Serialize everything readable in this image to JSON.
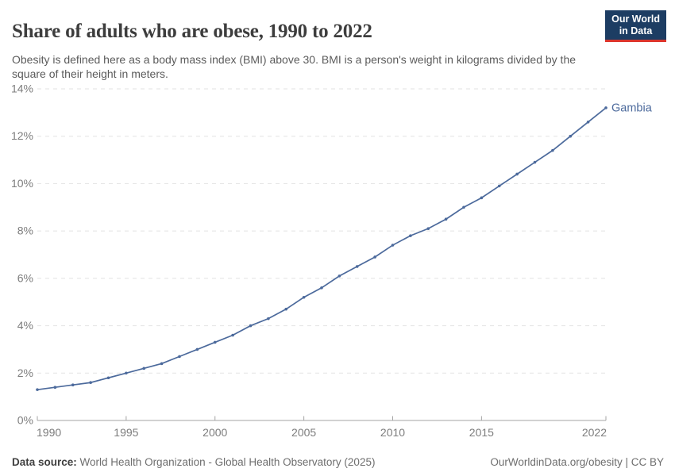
{
  "header": {
    "title": "Share of adults who are obese, 1990 to 2022",
    "subtitle": "Obesity is defined here as a body mass index (BMI) above 30. BMI is a person's weight in kilograms divided by the square of their height in meters.",
    "logo": {
      "line1": "Our World",
      "line2": "in Data"
    }
  },
  "footer": {
    "source_label": "Data source:",
    "source_value": " World Health Organization - Global Health Observatory (2025)",
    "credit": "OurWorldinData.org/obesity | CC BY"
  },
  "colors": {
    "title_color": "#3d3d3d",
    "subtitle_color": "#5b5b5b",
    "logo_bg": "#1d3d63",
    "logo_bar": "#dc352c",
    "gridline_color": "#e2e2e2",
    "axis_color": "#a5a5a5",
    "tick_label_color": "#7d7d7d",
    "footer_color": "#6e6e6e",
    "footer_label_color": "#3f3f3f",
    "line_color": "#4C6A9C"
  },
  "chart_data": {
    "type": "line",
    "title": "Share of adults who are obese, 1990 to 2022",
    "xlabel": "",
    "ylabel": "",
    "xlim": [
      1990,
      2022
    ],
    "ylim": [
      0,
      14
    ],
    "grid": "horizontal-dashed",
    "legend_position": "end-of-line",
    "x_ticks": [
      "1990",
      "1995",
      "2000",
      "2005",
      "2010",
      "2015",
      "2022"
    ],
    "y_ticks": [
      "0%",
      "2%",
      "4%",
      "6%",
      "8%",
      "10%",
      "12%",
      "14%"
    ],
    "y_tick_values": [
      0,
      2,
      4,
      6,
      8,
      10,
      12,
      14
    ],
    "series": [
      {
        "name": "Gambia",
        "color": "#4C6A9C",
        "x": [
          1990,
          1991,
          1992,
          1993,
          1994,
          1995,
          1996,
          1997,
          1998,
          1999,
          2000,
          2001,
          2002,
          2003,
          2004,
          2005,
          2006,
          2007,
          2008,
          2009,
          2010,
          2011,
          2012,
          2013,
          2014,
          2015,
          2016,
          2017,
          2018,
          2019,
          2020,
          2021,
          2022
        ],
        "values": [
          1.3,
          1.4,
          1.5,
          1.6,
          1.8,
          2.0,
          2.2,
          2.4,
          2.7,
          3.0,
          3.3,
          3.6,
          4.0,
          4.3,
          4.7,
          5.2,
          5.6,
          6.1,
          6.5,
          6.9,
          7.4,
          7.8,
          8.1,
          8.5,
          9.0,
          9.4,
          9.9,
          10.4,
          10.9,
          11.4,
          12.0,
          12.6,
          13.2
        ]
      }
    ]
  }
}
